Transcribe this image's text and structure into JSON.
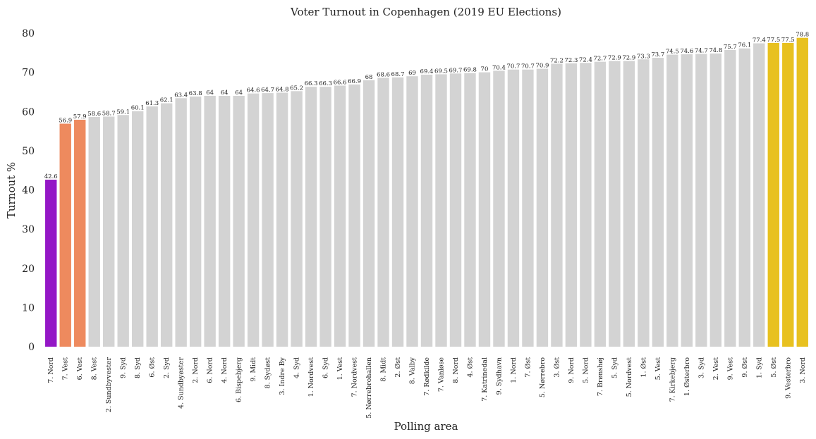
{
  "chart_data": {
    "type": "bar",
    "title": "Voter Turnout in Copenhagen (2019 EU Elections)",
    "xlabel": "Polling area",
    "ylabel": "Turnout %",
    "ylim": [
      0,
      80
    ],
    "yticks": [
      0,
      10,
      20,
      30,
      40,
      50,
      60,
      70,
      80
    ],
    "grid": false,
    "legend": "none",
    "colors": {
      "lowest": "#9417c6",
      "low": "#ee8a5e",
      "highest": "#e8c11f",
      "default": "#d3d3d3"
    },
    "categories": [
      "7. Nord",
      "7. Vest",
      "6. Vest",
      "8. Vest",
      "2. Sundbyvester",
      "9. Syd",
      "8. Syd",
      "6. Øst",
      "2. Syd",
      "4. Sundbyøster",
      "2. Nord",
      "6. Nord",
      "4. Nord",
      "6. Bispebjerg",
      "9. Midt",
      "8. Sydøst",
      "3. Indre By",
      "4. Syd",
      "1. Nordvest",
      "6. Syd",
      "1. Vest",
      "7. Nordvest",
      "5. Nørrebrohallen",
      "8. Midt",
      "2. Øst",
      "8. Valby",
      "7. Rødkilde",
      "7. Vanløse",
      "8. Nord",
      "4. Øst",
      "7. Katrinedal",
      "9. Sydhavn",
      "1. Nord",
      "7. Øst",
      "5. Nørrebro",
      "3. Øst",
      "9. Nord",
      "5. Nord",
      "7. Brønshøj",
      "5. Syd",
      "5. Nordvest",
      "1. Øst",
      "5. Vest",
      "7. Kirkebjerg",
      "1. Østerbro",
      "3. Syd",
      "2. Vest",
      "9. Vest",
      "9. Øst",
      "1. Syd",
      "5. Øst",
      "9. Vesterbro",
      "3. Nord"
    ],
    "values": [
      42.6,
      56.9,
      57.9,
      58.6,
      58.7,
      59.1,
      60.1,
      61.3,
      62.1,
      63.4,
      63.8,
      64,
      64,
      64,
      64.6,
      64.7,
      64.8,
      65.2,
      66.3,
      66.3,
      66.6,
      66.9,
      68,
      68.6,
      68.7,
      69,
      69.4,
      69.5,
      69.7,
      69.8,
      70,
      70.4,
      70.7,
      70.7,
      70.9,
      72.2,
      72.3,
      72.4,
      72.7,
      72.9,
      72.9,
      73.3,
      73.7,
      74.5,
      74.6,
      74.7,
      74.8,
      75.7,
      76.1,
      77.4,
      77.5,
      77.5,
      78.8
    ],
    "data_labels": [
      "42.6",
      "56.9",
      "57.9",
      "58.6",
      "58.7",
      "59.1",
      "60.1",
      "61.3",
      "62.1",
      "63.4",
      "63.8",
      "64",
      "64",
      "64",
      "64.6",
      "64.7",
      "64.8",
      "65.2",
      "66.3",
      "66.3",
      "66.6",
      "66.9",
      "68",
      "68.6",
      "68.7",
      "69",
      "69.4",
      "69.5",
      "69.7",
      "69.8",
      "70",
      "70.4",
      "70.7",
      "70.7",
      "70.9",
      "72.2",
      "72.3",
      "72.4",
      "72.7",
      "72.9",
      "72.9",
      "73.3",
      "73.7",
      "74.5",
      "74.6",
      "74.7",
      "74.8",
      "75.7",
      "76.1",
      "77.4",
      "77.5",
      "77.5",
      "78.8"
    ],
    "highlight": {
      "lowest": [
        "7. Nord"
      ],
      "low": [
        "7. Vest",
        "6. Vest"
      ],
      "highest": [
        "5. Øst",
        "9. Vesterbro",
        "3. Nord"
      ]
    }
  }
}
